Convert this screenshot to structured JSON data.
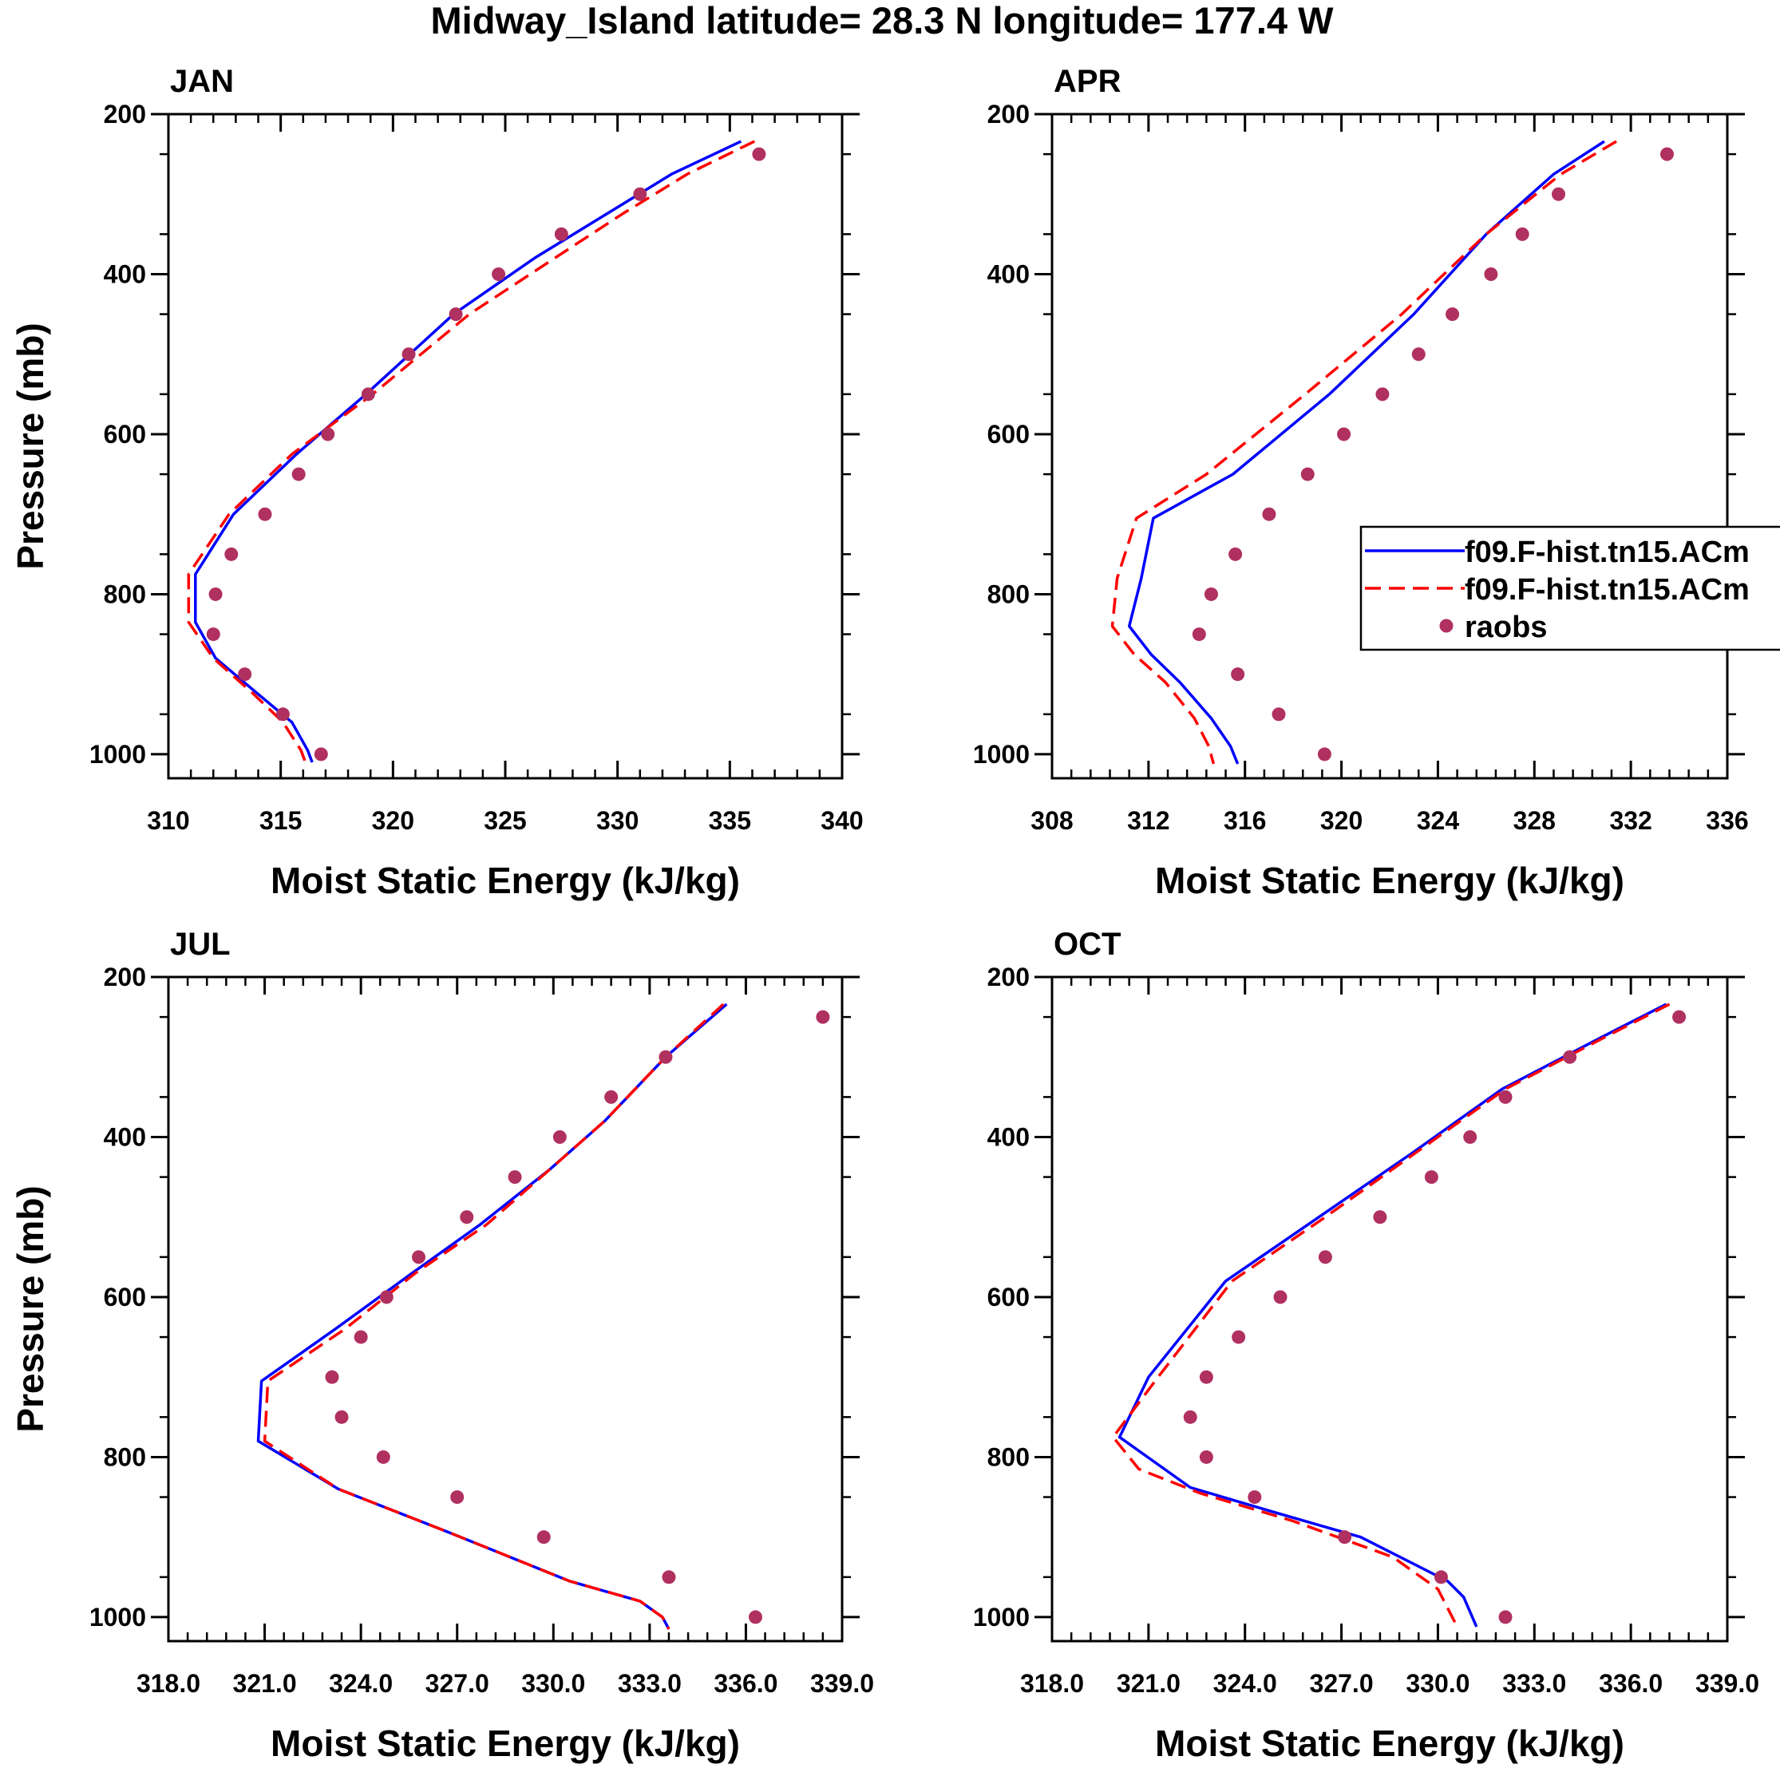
{
  "title": "Midway_Island  latitude= 28.3 N longitude= 177.4 W",
  "colors": {
    "model1": "#0000ff",
    "model2": "#ff0000",
    "raobs": "#b03060"
  },
  "legend": {
    "entries": [
      {
        "label": "f09.F-hist.tn15.ACm",
        "style": "solid-blue"
      },
      {
        "label": "f09.F-hist.tn15.ACm",
        "style": "dashed-red"
      },
      {
        "label": "raobs",
        "style": "dots"
      }
    ]
  },
  "chart_data": [
    {
      "type": "line",
      "title": "JAN",
      "xlabel": "Moist Static Energy (kJ/kg)",
      "ylabel": "Pressure (mb)",
      "xlim": [
        310,
        340
      ],
      "ylim": [
        200,
        1030
      ],
      "xticks": [
        310,
        315,
        320,
        325,
        330,
        335,
        340
      ],
      "xtick_labels": [
        "310",
        "315",
        "320",
        "325",
        "330",
        "335",
        "340"
      ],
      "yticks": [
        200,
        400,
        600,
        800,
        1000
      ],
      "ytick_labels": [
        "200",
        "400",
        "600",
        "800",
        "1000"
      ],
      "series": [
        {
          "name": "f09.F-hist.tn15.ACm",
          "style": "solid",
          "x": [
            335.5,
            332.4,
            329.5,
            326.3,
            322.7,
            318.8,
            315.7,
            312.9,
            311.2,
            311.2,
            312.1,
            314.0,
            315.5,
            316.2,
            316.4
          ],
          "y": [
            234,
            275,
            325,
            380,
            450,
            550,
            625,
            700,
            775,
            835,
            880,
            925,
            960,
            995,
            1010
          ]
        },
        {
          "name": "f09.F-hist.tn15.ACm",
          "style": "dashed",
          "x": [
            336.1,
            333.1,
            330.2,
            327.2,
            323.4,
            319.1,
            315.5,
            312.7,
            310.9,
            310.9,
            312.0,
            313.8,
            315.1,
            315.9,
            316.1
          ],
          "y": [
            234,
            275,
            325,
            380,
            450,
            550,
            625,
            700,
            775,
            835,
            880,
            925,
            960,
            995,
            1010
          ]
        },
        {
          "name": "raobs",
          "style": "dots",
          "x": [
            336.3,
            331.0,
            327.5,
            324.7,
            322.8,
            320.7,
            318.9,
            317.1,
            315.8,
            314.3,
            312.8,
            312.1,
            312.0,
            313.4,
            315.1,
            316.8
          ],
          "y": [
            250,
            300,
            350,
            400,
            450,
            500,
            550,
            600,
            650,
            700,
            750,
            800,
            850,
            900,
            950,
            1000
          ]
        }
      ]
    },
    {
      "type": "line",
      "title": "APR",
      "xlabel": "Moist Static Energy (kJ/kg)",
      "ylabel": "",
      "xlim": [
        308,
        336
      ],
      "ylim": [
        200,
        1030
      ],
      "xticks": [
        308,
        312,
        316,
        320,
        324,
        328,
        332,
        336
      ],
      "xtick_labels": [
        "308",
        "312",
        "316",
        "320",
        "324",
        "328",
        "332",
        "336"
      ],
      "yticks": [
        200,
        400,
        600,
        800,
        1000
      ],
      "ytick_labels": [
        "200",
        "400",
        "600",
        "800",
        "1000"
      ],
      "series": [
        {
          "name": "f09.F-hist.tn15.ACm",
          "style": "solid",
          "x": [
            330.9,
            328.8,
            326.0,
            323.0,
            319.5,
            315.5,
            312.2,
            311.7,
            311.2,
            312.1,
            313.3,
            314.6,
            315.4,
            315.7
          ],
          "y": [
            234,
            275,
            350,
            450,
            550,
            650,
            705,
            780,
            840,
            875,
            910,
            955,
            990,
            1012
          ]
        },
        {
          "name": "f09.F-hist.tn15.ACm",
          "style": "dashed",
          "x": [
            331.4,
            329.1,
            326.0,
            322.5,
            318.5,
            314.4,
            311.5,
            310.7,
            310.5,
            311.4,
            312.7,
            313.9,
            314.5,
            314.7
          ],
          "y": [
            234,
            275,
            350,
            450,
            550,
            650,
            705,
            780,
            840,
            875,
            910,
            955,
            990,
            1012
          ]
        },
        {
          "name": "raobs",
          "style": "dots",
          "x": [
            333.5,
            329.0,
            327.5,
            326.2,
            324.6,
            323.2,
            321.7,
            320.1,
            318.6,
            317.0,
            315.6,
            314.6,
            314.1,
            315.7,
            317.4,
            319.3
          ],
          "y": [
            250,
            300,
            350,
            400,
            450,
            500,
            550,
            600,
            650,
            700,
            750,
            800,
            850,
            900,
            950,
            1000
          ]
        }
      ]
    },
    {
      "type": "line",
      "title": "JUL",
      "xlabel": "Moist Static Energy (kJ/kg)",
      "ylabel": "Pressure (mb)",
      "xlim": [
        318,
        339
      ],
      "ylim": [
        200,
        1030
      ],
      "xticks": [
        318,
        321,
        324,
        327,
        330,
        333,
        336,
        339
      ],
      "xtick_labels": [
        "318.0",
        "321.0",
        "324.0",
        "327.0",
        "330.0",
        "333.0",
        "336.0",
        "339.0"
      ],
      "yticks": [
        200,
        400,
        600,
        800,
        1000
      ],
      "ytick_labels": [
        "200",
        "400",
        "600",
        "800",
        "1000"
      ],
      "series": [
        {
          "name": "f09.F-hist.tn15.ACm",
          "style": "solid",
          "x": [
            335.4,
            333.5,
            331.6,
            329.9,
            327.7,
            325.6,
            323.2,
            320.9,
            320.8,
            323.3,
            326.8,
            330.5,
            332.7,
            333.4,
            333.6
          ],
          "y": [
            234,
            300,
            380,
            440,
            510,
            570,
            640,
            705,
            780,
            840,
            895,
            955,
            980,
            1000,
            1015
          ]
        },
        {
          "name": "f09.F-hist.tn15.ACm",
          "style": "dashed",
          "x": [
            335.3,
            333.5,
            331.6,
            329.9,
            327.9,
            325.7,
            323.5,
            321.1,
            321.0,
            323.3,
            326.8,
            330.5,
            332.7,
            333.4,
            333.6
          ],
          "y": [
            234,
            300,
            380,
            440,
            510,
            570,
            640,
            705,
            780,
            840,
            895,
            955,
            980,
            1000,
            1015
          ]
        },
        {
          "name": "raobs",
          "style": "dots",
          "x": [
            338.4,
            333.5,
            331.8,
            330.2,
            328.8,
            327.3,
            325.8,
            324.8,
            324.0,
            323.1,
            323.4,
            324.7,
            327.0,
            329.7,
            333.6,
            336.3
          ],
          "y": [
            250,
            300,
            350,
            400,
            450,
            500,
            550,
            600,
            650,
            700,
            750,
            800,
            850,
            900,
            950,
            1000
          ]
        }
      ]
    },
    {
      "type": "line",
      "title": "OCT",
      "xlabel": "Moist Static Energy (kJ/kg)",
      "ylabel": "",
      "xlim": [
        318,
        339
      ],
      "ylim": [
        200,
        1030
      ],
      "xticks": [
        318,
        321,
        324,
        327,
        330,
        333,
        336,
        339
      ],
      "xtick_labels": [
        "318.0",
        "321.0",
        "324.0",
        "327.0",
        "330.0",
        "333.0",
        "336.0",
        "339.0"
      ],
      "yticks": [
        200,
        400,
        600,
        800,
        1000
      ],
      "ytick_labels": [
        "200",
        "400",
        "600",
        "800",
        "1000"
      ],
      "series": [
        {
          "name": "f09.F-hist.tn15.ACm",
          "style": "solid",
          "x": [
            337.1,
            335.1,
            332.0,
            329.2,
            326.3,
            323.4,
            321.0,
            320.1,
            322.3,
            325.0,
            327.6,
            330.3,
            330.8,
            331.2
          ],
          "y": [
            234,
            275,
            340,
            420,
            500,
            580,
            700,
            775,
            838,
            870,
            900,
            955,
            975,
            1012
          ]
        },
        {
          "name": "f09.F-hist.tn15.ACm",
          "style": "dashed",
          "x": [
            337.2,
            335.2,
            332.1,
            329.3,
            326.5,
            323.6,
            321.3,
            319.9,
            320.7,
            322.6,
            325.5,
            328.6,
            330.0,
            330.6
          ],
          "y": [
            234,
            275,
            340,
            420,
            500,
            580,
            700,
            775,
            815,
            845,
            880,
            925,
            965,
            1012
          ]
        },
        {
          "name": "raobs",
          "style": "dots",
          "x": [
            337.5,
            334.1,
            332.1,
            331.0,
            329.8,
            328.2,
            326.5,
            325.1,
            323.8,
            322.8,
            322.3,
            322.8,
            324.3,
            327.1,
            330.1,
            332.1
          ],
          "y": [
            250,
            300,
            350,
            400,
            450,
            500,
            550,
            600,
            650,
            700,
            750,
            800,
            850,
            900,
            950,
            1000
          ]
        }
      ]
    }
  ]
}
